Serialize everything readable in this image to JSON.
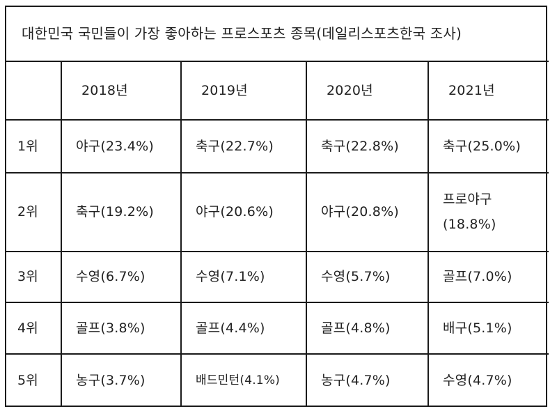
{
  "title": "대한민국 국민들이 가장 좋아하는 프로스포츠 종목(데일리스포츠한국 조사)",
  "years": [
    "2018년",
    "2019년",
    "2020년",
    "2021년"
  ],
  "rows": [
    {
      "rank": "1위",
      "cells": [
        "야구(23.4%)",
        "축구(22.7%)",
        "축구(22.8%)",
        "축구(25.0%)"
      ]
    },
    {
      "rank": "2위",
      "cells": [
        "축구(19.2%)",
        "야구(20.6%)",
        "야구(20.8%)",
        "프로야구 (18.8%)"
      ]
    },
    {
      "rank": "3위",
      "cells": [
        "수영(6.7%)",
        "수영(7.1%)",
        "수영(5.7%)",
        "골프(7.0%)"
      ]
    },
    {
      "rank": "4위",
      "cells": [
        "골프(3.8%)",
        "골프(4.4%)",
        "골프(4.8%)",
        "배구(5.1%)"
      ]
    },
    {
      "rank": "5위",
      "cells": [
        "농구(3.7%)",
        "배드민턴(4.1%)",
        "농구(4.7%)",
        "수영(4.7%)"
      ]
    }
  ]
}
